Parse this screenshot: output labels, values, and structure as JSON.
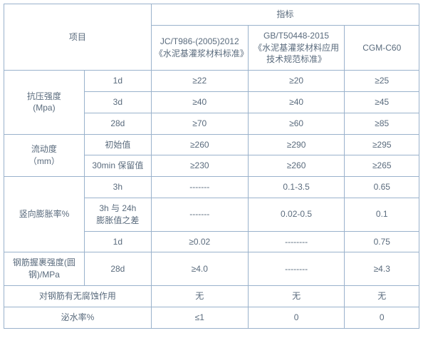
{
  "header": {
    "project": "项目",
    "indicator": "指标",
    "col_jc": "JC/T986-(2005)2012\n《水泥基灌浆材料标准》",
    "col_gb": "GB/T50448-2015\n《水泥基灌浆材料应用技术规范标准》",
    "col_cgm": "CGM-C60"
  },
  "groups": {
    "compressive": "抗压强度\n(Mpa)",
    "fluidity": "流动度\n（mm）",
    "expansion": "竖向膨胀率%",
    "rebarGrip": "钢筋握裹强度(圆钢)/MPa",
    "corrosion": "对钢筋有无腐蚀作用",
    "bleed": "泌水率%"
  },
  "labels": {
    "d1": "1d",
    "d3": "3d",
    "d28": "28d",
    "initial": "初始值",
    "retain30": "30min 保留值",
    "h3": "3h",
    "diff": "3h 与 24h\n膨胀值之差"
  },
  "vals": {
    "cs_1d_jc": "≥22",
    "cs_1d_gb": "≥20",
    "cs_1d_c": "≥25",
    "cs_3d_jc": "≥40",
    "cs_3d_gb": "≥40",
    "cs_3d_c": "≥45",
    "cs_28d_jc": "≥70",
    "cs_28d_gb": "≥60",
    "cs_28d_c": "≥85",
    "fl_i_jc": "≥260",
    "fl_i_gb": "≥290",
    "fl_i_c": "≥295",
    "fl_r_jc": "≥230",
    "fl_r_gb": "≥260",
    "fl_r_c": "≥265",
    "ex_3h_jc": "-------",
    "ex_3h_gb": "0.1-3.5",
    "ex_3h_c": "0.65",
    "ex_d_jc": "-------",
    "ex_d_gb": "0.02-0.5",
    "ex_d_c": "0.1",
    "ex_1d_jc": "≥0.02",
    "ex_1d_gb": "--------",
    "ex_1d_c": "0.75",
    "rg_jc": "≥4.0",
    "rg_gb": "--------",
    "rg_c": "≥4.3",
    "co_jc": "无",
    "co_gb": "无",
    "co_c": "无",
    "bl_jc": "≤1",
    "bl_gb": "0",
    "bl_c": "0"
  }
}
